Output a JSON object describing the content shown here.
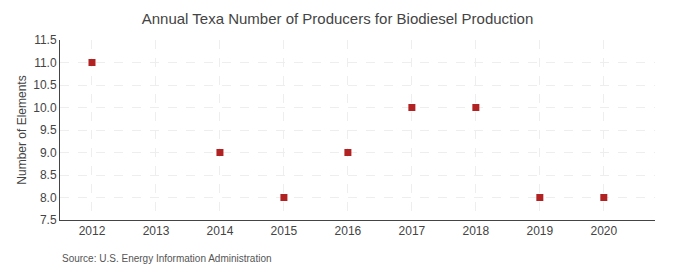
{
  "chart_data": {
    "type": "scatter",
    "title": "Annual Texa Number of Producers for Biodiesel Production",
    "ylabel": "Number of Elements",
    "source": "Source: U.S. Energy Information Administration",
    "x": [
      2012,
      2014,
      2015,
      2016,
      2017,
      2018,
      2019,
      2020
    ],
    "values": [
      11,
      9,
      8,
      9,
      10,
      10,
      8,
      8
    ],
    "xlim": [
      2011.5,
      2020.8
    ],
    "ylim": [
      7.5,
      11.5
    ],
    "xticks": [
      2012,
      2013,
      2014,
      2015,
      2016,
      2017,
      2018,
      2019,
      2020
    ],
    "yticks": [
      7.5,
      {
        "value": 8.0,
        "label": "8.0"
      },
      8.5,
      {
        "value": 9.0,
        "label": "9.0"
      },
      9.5,
      {
        "value": 10.0,
        "label": "10.0"
      },
      10.5,
      {
        "value": 11.0,
        "label": "11.0"
      },
      11.5
    ],
    "color": "#b22222",
    "marker": "square",
    "grid": true
  }
}
